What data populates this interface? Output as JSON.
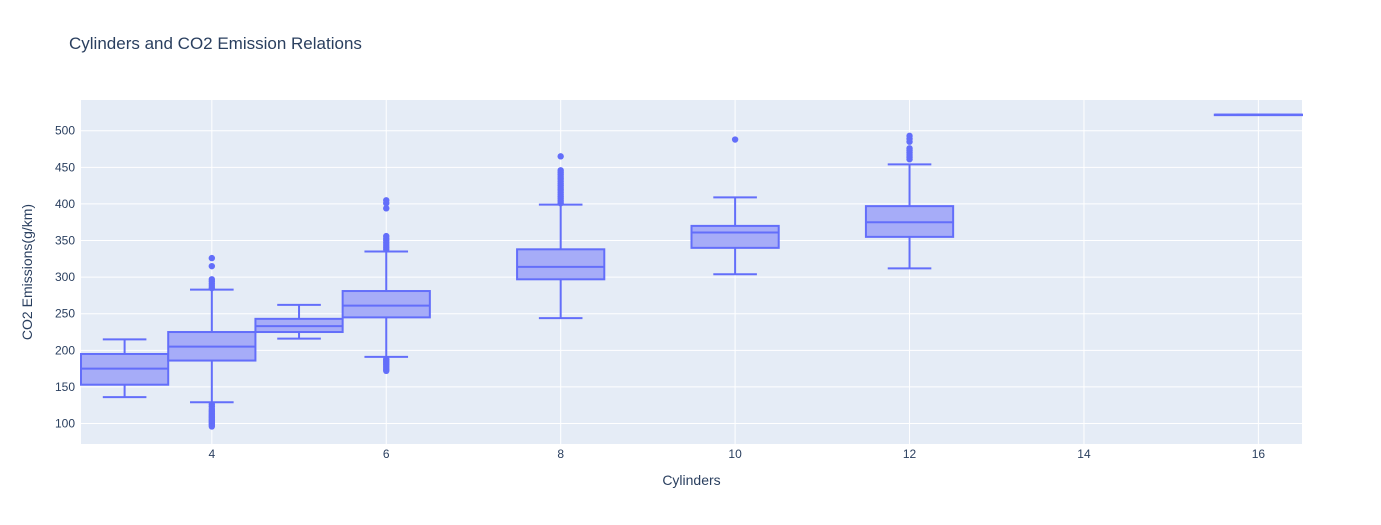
{
  "chart_data": {
    "type": "box",
    "title": "Cylinders and CO2 Emission Relations",
    "xlabel": "Cylinders",
    "ylabel": "CO2 Emissions(g/km)",
    "xlim": [
      2.5,
      16.5
    ],
    "ylim": [
      72,
      542
    ],
    "xticks": [
      4,
      6,
      8,
      10,
      12,
      14,
      16
    ],
    "yticks": [
      100,
      150,
      200,
      250,
      300,
      350,
      400,
      450,
      500
    ],
    "grid": true,
    "colors": {
      "box": "#636efa",
      "fill": "#a6acf8",
      "plot_bg": "#e5ecf6",
      "grid": "#ffffff",
      "text": "#2a3f5f"
    },
    "boxes": [
      {
        "x": 3,
        "min": 136,
        "q1": 153,
        "median": 175,
        "q3": 195,
        "max": 215,
        "outliers": []
      },
      {
        "x": 4,
        "min": 129,
        "q1": 186,
        "median": 205,
        "q3": 225,
        "max": 283,
        "outliers": [
          96,
          98,
          100,
          102,
          104,
          106,
          108,
          110,
          112,
          114,
          116,
          118,
          120,
          123,
          126,
          285,
          288,
          291,
          294,
          297,
          315,
          326
        ]
      },
      {
        "x": 5,
        "min": 216,
        "q1": 225,
        "median": 233,
        "q3": 243,
        "max": 262,
        "outliers": []
      },
      {
        "x": 6,
        "min": 191,
        "q1": 245,
        "median": 261,
        "q3": 281,
        "max": 335,
        "outliers": [
          172,
          174,
          176,
          178,
          180,
          182,
          184,
          186,
          188,
          338,
          341,
          344,
          347,
          350,
          353,
          356,
          394,
          401,
          405
        ]
      },
      {
        "x": 8,
        "min": 244,
        "q1": 297,
        "median": 314,
        "q3": 338,
        "max": 399,
        "outliers": [
          401,
          404,
          407,
          410,
          413,
          416,
          419,
          422,
          425,
          428,
          431,
          434,
          437,
          440,
          443,
          446,
          465
        ]
      },
      {
        "x": 10,
        "min": 304,
        "q1": 340,
        "median": 361,
        "q3": 370,
        "max": 409,
        "outliers": [
          488
        ]
      },
      {
        "x": 12,
        "min": 312,
        "q1": 355,
        "median": 375,
        "q3": 397,
        "max": 454,
        "outliers": [
          461,
          464,
          467,
          470,
          473,
          476,
          485,
          489,
          493
        ]
      },
      {
        "x": 16,
        "min": 522,
        "q1": 522,
        "median": 522,
        "q3": 522,
        "max": 522,
        "outliers": []
      }
    ]
  }
}
